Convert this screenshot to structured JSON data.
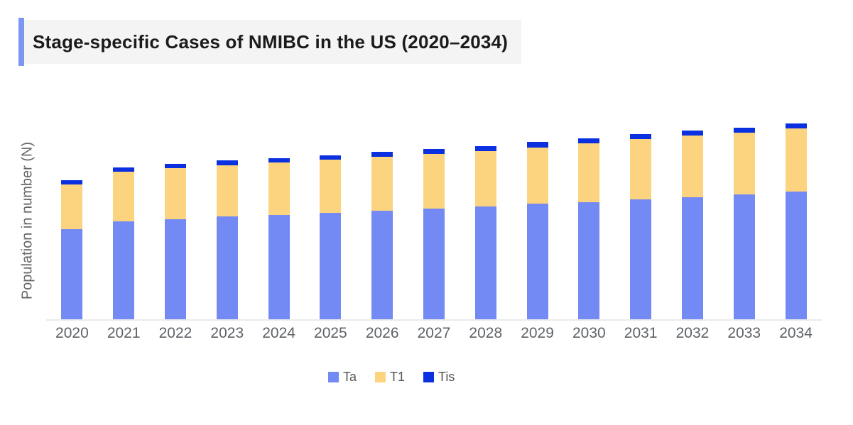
{
  "header": {
    "title": "Stage-specific Cases of NMIBC in the US (2020–2034)",
    "accent_color": "#7D96F2",
    "block_background": "#F4F4F4"
  },
  "chart_data": {
    "type": "bar",
    "stacked": true,
    "title": "Stage-specific Cases of NMIBC in the US (2020–2034)",
    "xlabel": "",
    "ylabel": "Population in number (N)",
    "y_tick_labels_visible": false,
    "value_unit": "relative height (y-axis shown without numeric ticks)",
    "ylim": [
      0,
      300
    ],
    "grid": false,
    "legend_position": "bottom-center",
    "axis_line_color": "#EBEBEB",
    "tick_label_color": "#5F6368",
    "categories": [
      "2020",
      "2021",
      "2022",
      "2023",
      "2024",
      "2025",
      "2026",
      "2027",
      "2028",
      "2029",
      "2030",
      "2031",
      "2032",
      "2033",
      "2034"
    ],
    "series": [
      {
        "name": "Ta",
        "color": "#7389F4",
        "values": [
          127,
          138,
          141,
          145,
          147,
          150,
          153,
          156,
          159,
          163,
          165,
          169,
          172,
          176,
          180
        ]
      },
      {
        "name": "T1",
        "color": "#FCD37E",
        "values": [
          63,
          70,
          72,
          72,
          74,
          75,
          76,
          77,
          78,
          79,
          83,
          85,
          87,
          87,
          89
        ]
      },
      {
        "name": "Tis",
        "color": "#0A30E0",
        "values": [
          6,
          6,
          6,
          7,
          6,
          6,
          7,
          7,
          7,
          8,
          7,
          7,
          7,
          7,
          7
        ]
      }
    ]
  }
}
